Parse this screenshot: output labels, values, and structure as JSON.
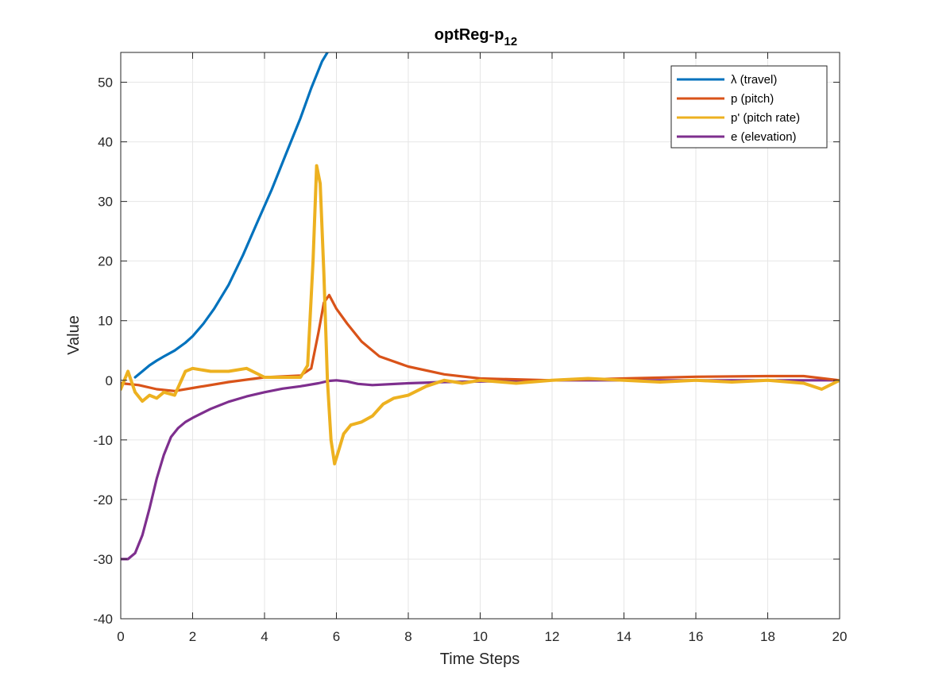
{
  "chart_data": {
    "type": "line",
    "title": "optReg-p",
    "title_subscript": "12",
    "xlabel": "Time Steps",
    "ylabel": "Value",
    "xlim": [
      0,
      20
    ],
    "ylim": [
      -40,
      55
    ],
    "xticks": [
      0,
      2,
      4,
      6,
      8,
      10,
      12,
      14,
      16,
      18,
      20
    ],
    "yticks": [
      -40,
      -30,
      -20,
      -10,
      0,
      10,
      20,
      30,
      40,
      50
    ],
    "grid": true,
    "legend_position": "top-right",
    "series": [
      {
        "name": "λ (travel)",
        "color": "#0072BD",
        "x": [
          0.4,
          0.6,
          0.8,
          1.0,
          1.2,
          1.5,
          1.8,
          2.0,
          2.3,
          2.6,
          3.0,
          3.4,
          3.8,
          4.2,
          4.6,
          5.0,
          5.3,
          5.6,
          5.85
        ],
        "y": [
          0.5,
          1.5,
          2.5,
          3.3,
          4.0,
          5.0,
          6.3,
          7.4,
          9.5,
          12.0,
          16.0,
          21.0,
          26.5,
          32.0,
          38.0,
          44.0,
          49.0,
          53.5,
          56.0
        ]
      },
      {
        "name": "p (pitch)",
        "color": "#D95319",
        "x": [
          0,
          0.5,
          1.0,
          1.5,
          2.0,
          3.0,
          4.0,
          5.0,
          5.3,
          5.5,
          5.65,
          5.8,
          6.0,
          6.3,
          6.7,
          7.2,
          8.0,
          9.0,
          10.0,
          12.0,
          14.0,
          16.0,
          18.0,
          19.0,
          20.0
        ],
        "y": [
          -0.5,
          -0.8,
          -1.5,
          -1.8,
          -1.3,
          -0.3,
          0.5,
          0.8,
          2.0,
          8.0,
          13.0,
          14.3,
          12.0,
          9.5,
          6.5,
          4.0,
          2.3,
          1.0,
          0.3,
          0.0,
          0.3,
          0.6,
          0.7,
          0.7,
          0.0
        ]
      },
      {
        "name": "p' (pitch rate)",
        "color": "#EDB120",
        "x": [
          0,
          0.2,
          0.4,
          0.6,
          0.8,
          1.0,
          1.2,
          1.5,
          1.8,
          2.0,
          2.5,
          3.0,
          3.5,
          4.0,
          4.5,
          5.0,
          5.2,
          5.35,
          5.45,
          5.55,
          5.65,
          5.75,
          5.85,
          5.95,
          6.05,
          6.2,
          6.4,
          6.7,
          7.0,
          7.3,
          7.6,
          8.0,
          8.5,
          9.0,
          9.5,
          10.0,
          11.0,
          12.0,
          13.0,
          14.0,
          15.0,
          16.0,
          17.0,
          18.0,
          19.0,
          19.5,
          20.0
        ],
        "y": [
          -1.5,
          1.5,
          -2.0,
          -3.5,
          -2.5,
          -3.0,
          -2.0,
          -2.5,
          1.5,
          2.0,
          1.5,
          1.5,
          2.0,
          0.5,
          0.5,
          0.5,
          2.5,
          20.0,
          36.0,
          33.0,
          18.0,
          0.0,
          -10.0,
          -14.0,
          -12.0,
          -9.0,
          -7.5,
          -7.0,
          -6.0,
          -4.0,
          -3.0,
          -2.5,
          -1.0,
          0.0,
          -0.5,
          0.0,
          -0.5,
          0.0,
          0.3,
          0.0,
          -0.3,
          0.0,
          -0.3,
          0.0,
          -0.5,
          -1.5,
          0.0
        ]
      },
      {
        "name": "e (elevation)",
        "color": "#7E2F8E",
        "x": [
          0,
          0.2,
          0.4,
          0.6,
          0.8,
          1.0,
          1.2,
          1.4,
          1.6,
          1.8,
          2.0,
          2.5,
          3.0,
          3.5,
          4.0,
          4.5,
          5.0,
          5.5,
          5.8,
          6.0,
          6.3,
          6.6,
          7.0,
          8.0,
          9.0,
          10.0,
          11.0,
          12.0,
          13.0,
          14.0,
          15.0,
          16.0,
          17.0,
          18.0,
          19.0,
          20.0
        ],
        "y": [
          -30.0,
          -30.0,
          -29.0,
          -26.0,
          -21.5,
          -16.5,
          -12.5,
          -9.5,
          -8.0,
          -7.0,
          -6.3,
          -4.8,
          -3.6,
          -2.7,
          -2.0,
          -1.4,
          -1.0,
          -0.5,
          -0.1,
          0.0,
          -0.2,
          -0.6,
          -0.8,
          -0.5,
          -0.3,
          -0.2,
          -0.1,
          0.0,
          0.0,
          0.0,
          0.0,
          0.0,
          0.0,
          0.0,
          0.0,
          0.0
        ]
      }
    ]
  }
}
